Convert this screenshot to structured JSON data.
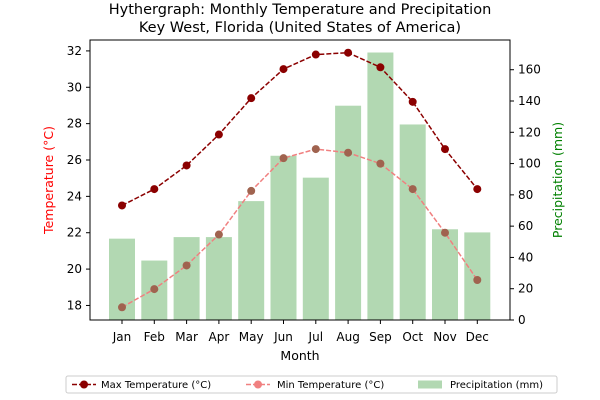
{
  "chart_data": {
    "type": "bar",
    "title_line1": "Hythergraph: Monthly Temperature and Precipitation",
    "title_line2": "Key West, Florida (United States of America)",
    "xlabel": "Month",
    "ylabel_left": "Temperature (°C)",
    "ylabel_right": "Precipitation (mm)",
    "categories": [
      "Jan",
      "Feb",
      "Mar",
      "Apr",
      "May",
      "Jun",
      "Jul",
      "Aug",
      "Sep",
      "Oct",
      "Nov",
      "Dec"
    ],
    "y_left_ticks": [
      18,
      20,
      22,
      24,
      26,
      28,
      30,
      32
    ],
    "y_left_range": [
      17.2,
      32.6
    ],
    "y_right_ticks": [
      0,
      20,
      40,
      60,
      80,
      100,
      120,
      140,
      160
    ],
    "y_right_range": [
      0,
      179
    ],
    "series": [
      {
        "name": "Max Temperature (°C)",
        "axis": "left",
        "kind": "line",
        "color": "#8b0000",
        "values": [
          23.5,
          24.4,
          25.7,
          27.4,
          29.4,
          31.0,
          31.8,
          31.9,
          31.1,
          29.2,
          26.6,
          24.4
        ]
      },
      {
        "name": "Min Temperature (°C)",
        "axis": "left",
        "kind": "line",
        "color": "#f08080",
        "values": [
          17.9,
          18.9,
          20.2,
          21.9,
          24.3,
          26.1,
          26.6,
          26.4,
          25.8,
          24.4,
          22.0,
          19.4
        ]
      },
      {
        "name": "Precipitation (mm)",
        "axis": "right",
        "kind": "bar",
        "color": "#b2d8b2",
        "values": [
          52,
          38,
          53,
          53,
          76,
          105,
          91,
          137,
          171,
          125,
          58,
          56
        ]
      }
    ],
    "colors": {
      "left_axis": "#ff0000",
      "right_axis": "#008000",
      "min_marker": "#a0634f"
    },
    "legend_position": "bottom-center",
    "grid": false
  }
}
